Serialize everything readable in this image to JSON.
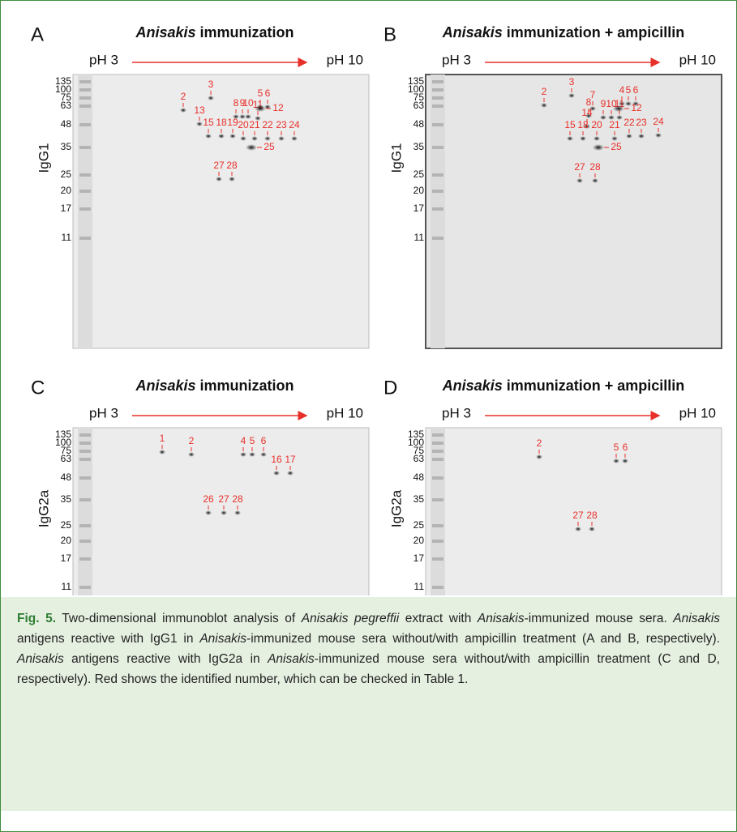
{
  "panels": [
    {
      "letter": "A",
      "title_italic": "Anisakis",
      "title": "immunization",
      "ph_start": "pH 3",
      "ph_end": "pH 10",
      "ylabel": "IgG1",
      "markers": [
        135,
        100,
        75,
        63,
        48,
        35,
        25,
        20,
        17,
        11
      ],
      "spots": [
        2,
        3,
        5,
        6,
        8,
        9,
        10,
        11,
        12,
        13,
        15,
        18,
        19,
        20,
        21,
        22,
        23,
        24,
        25,
        27,
        28
      ]
    },
    {
      "letter": "B",
      "title_italic": "Anisakis",
      "title": "immunization + ampicillin",
      "ph_start": "pH 3",
      "ph_end": "pH 10",
      "ylabel": "IgG1",
      "markers": [
        135,
        100,
        75,
        63,
        48,
        35,
        25,
        20,
        17,
        11
      ],
      "spots": [
        2,
        3,
        7,
        4,
        5,
        6,
        8,
        9,
        10,
        11,
        12,
        14,
        15,
        18,
        20,
        21,
        22,
        23,
        24,
        25,
        27,
        28
      ]
    },
    {
      "letter": "C",
      "title_italic": "Anisakis",
      "title": "immunization",
      "ph_start": "pH 3",
      "ph_end": "pH 10",
      "ylabel": "IgG2a",
      "markers": [
        135,
        100,
        75,
        63,
        48,
        35,
        25,
        20,
        17,
        11
      ],
      "spots": [
        1,
        2,
        4,
        5,
        6,
        16,
        17,
        26,
        27,
        28
      ]
    },
    {
      "letter": "D",
      "title_italic": "Anisakis",
      "title": "immunization + ampicillin",
      "ph_start": "pH 3",
      "ph_end": "pH 10",
      "ylabel": "IgG2a",
      "markers": [
        135,
        100,
        75,
        63,
        48,
        35,
        25,
        20,
        17,
        11
      ],
      "spots": [
        2,
        5,
        6,
        27,
        28
      ]
    }
  ],
  "caption": {
    "label": "Fig. 5.",
    "parts": [
      "Two-dimensional immunoblot analysis of ",
      "Anisakis pegreffii",
      " extract with ",
      "Anisakis",
      "-immunized mouse sera. ",
      "Anisakis",
      " antigens reactive with IgG1 in ",
      "Anisakis",
      "-immunized mouse sera without/with ampicillin treatment (A and B, respectively). ",
      "Anisakis",
      " antigens reactive with IgG2a in ",
      "Anisakis",
      "-immunized mouse sera without/with ampicillin treatment (C and D, respectively). Red shows the identified number, which can be checked in Table 1."
    ]
  }
}
